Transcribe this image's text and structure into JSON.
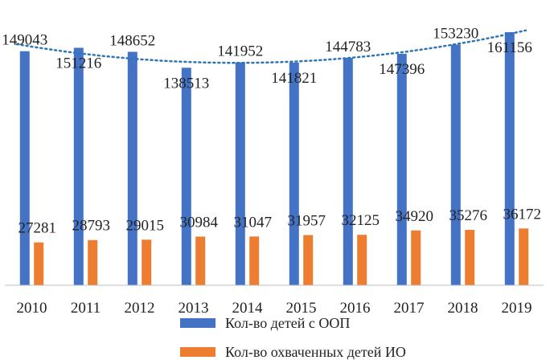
{
  "chart_data": {
    "type": "bar",
    "categories": [
      "2010",
      "2011",
      "2012",
      "2013",
      "2014",
      "2015",
      "2016",
      "2017",
      "2018",
      "2019"
    ],
    "series": [
      {
        "name": "Кол-во детей с ООП",
        "color": "#4472C4",
        "values": [
          149043,
          151216,
          148652,
          138513,
          141952,
          141821,
          144783,
          147396,
          153230,
          161156
        ]
      },
      {
        "name": "Кол-во охваченных детей ИО",
        "color": "#ED7D31",
        "values": [
          27281,
          28793,
          29015,
          30984,
          31047,
          31957,
          32125,
          34920,
          35276,
          36172
        ]
      }
    ],
    "trendline": {
      "series": "Кол-во детей с ООП",
      "kind": "polynomial",
      "style": "dotted",
      "color": "#2E75B6"
    },
    "ylim": [
      0,
      175000
    ],
    "grid": false,
    "legend_position": "bottom",
    "title": "",
    "xlabel": "",
    "ylabel": ""
  }
}
